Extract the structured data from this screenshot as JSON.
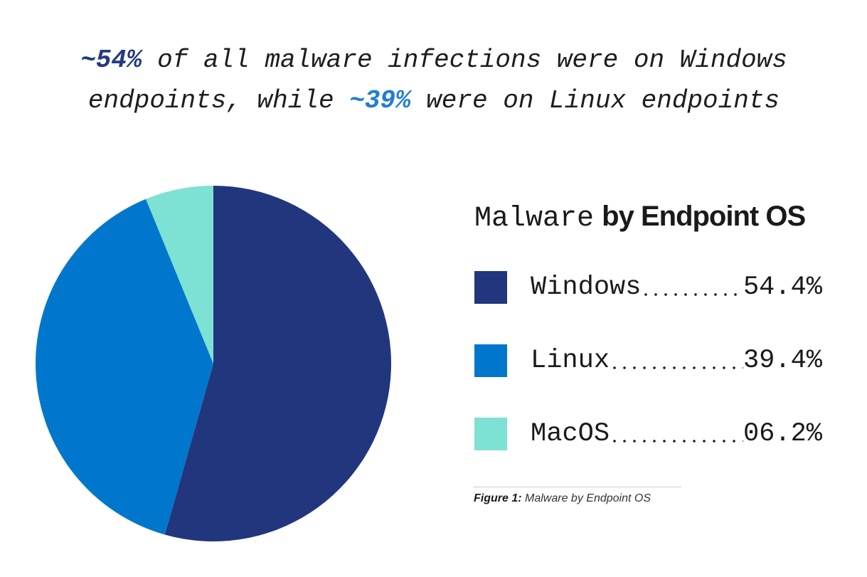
{
  "headline": [
    "~54%",
    " of all malware infections were on Windows endpoints, while ",
    "~39%",
    " were on Linux endpoints"
  ],
  "chart_data": {
    "type": "pie",
    "title": {
      "light": "Malware",
      "bold": "by Endpoint OS"
    },
    "categories": [
      "Windows",
      "Linux",
      "MacOS"
    ],
    "values": [
      54.4,
      39.4,
      6.2
    ],
    "value_labels": [
      "54.4%",
      "39.4%",
      "06.2%"
    ],
    "colors": [
      "#21367c",
      "#0077cc",
      "#7de1d3"
    ]
  },
  "caption": {
    "label": "Figure 1:",
    "text": "Malware by Endpoint OS"
  }
}
